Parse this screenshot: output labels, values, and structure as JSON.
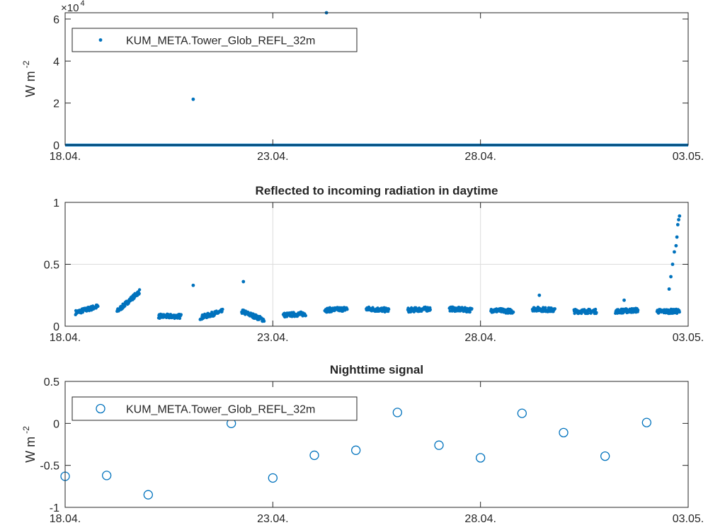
{
  "colors": {
    "series": "#0072BD",
    "axis": "#262626",
    "grid": "#DCDCDC"
  },
  "chart_data": [
    {
      "type": "scatter",
      "title": "",
      "ylabel": "W m",
      "ylabel_sup": "-2",
      "exponent_label": "×10",
      "exponent_sup": "4",
      "xlim": [
        "2018-04-18",
        "2018-05-03"
      ],
      "ylim": [
        0,
        6.3
      ],
      "grid": false,
      "x_ticks": [
        "18.04.",
        "23.04.",
        "28.04.",
        "03.05."
      ],
      "y_ticks": [
        "0",
        "2",
        "4",
        "6"
      ],
      "legend": {
        "position": "top-left",
        "entries": [
          "KUM_META.Tower_Glob_REFL_32m"
        ]
      },
      "series": [
        {
          "name": "KUM_META.Tower_Glob_REFL_32m",
          "baseline": {
            "value": 0,
            "from": "2018-04-18",
            "to": "2018-05-03"
          },
          "points": [
            {
              "x": "2018-04-21 02:00",
              "y": 2.18
            },
            {
              "x": "2018-04-24 07:00",
              "y": 6.3
            }
          ]
        }
      ]
    },
    {
      "type": "scatter",
      "title": "Reflected to incoming radiation in daytime",
      "ylabel": "",
      "xlim": [
        "2018-04-18",
        "2018-05-03"
      ],
      "ylim": [
        0,
        1
      ],
      "grid": true,
      "x_ticks": [
        "18.04.",
        "23.04.",
        "28.04.",
        "03.05."
      ],
      "y_ticks": [
        "0",
        "0.5",
        "1"
      ],
      "series": [
        {
          "name": "",
          "day_clusters": [
            {
              "start": "2018-04-18 06:00",
              "end": "2018-04-18 19:00",
              "y_start": 0.11,
              "y_end": 0.16
            },
            {
              "start": "2018-04-19 06:00",
              "end": "2018-04-19 19:00",
              "y_start": 0.12,
              "y_end": 0.28
            },
            {
              "start": "2018-04-20 06:00",
              "end": "2018-04-20 19:00",
              "y_start": 0.08,
              "y_end": 0.08
            },
            {
              "start": "2018-04-21 06:00",
              "end": "2018-04-21 19:00",
              "y_start": 0.07,
              "y_end": 0.12
            },
            {
              "start": "2018-04-22 06:00",
              "end": "2018-04-22 19:00",
              "y_start": 0.12,
              "y_end": 0.05
            },
            {
              "start": "2018-04-23 06:00",
              "end": "2018-04-23 19:00",
              "y_start": 0.09,
              "y_end": 0.1
            },
            {
              "start": "2018-04-24 06:00",
              "end": "2018-04-24 19:00",
              "y_start": 0.13,
              "y_end": 0.14
            },
            {
              "start": "2018-04-25 06:00",
              "end": "2018-04-25 19:00",
              "y_start": 0.14,
              "y_end": 0.13
            },
            {
              "start": "2018-04-26 06:00",
              "end": "2018-04-26 19:00",
              "y_start": 0.13,
              "y_end": 0.14
            },
            {
              "start": "2018-04-27 06:00",
              "end": "2018-04-27 19:00",
              "y_start": 0.14,
              "y_end": 0.13
            },
            {
              "start": "2018-04-28 06:00",
              "end": "2018-04-28 19:00",
              "y_start": 0.13,
              "y_end": 0.12
            },
            {
              "start": "2018-04-29 06:00",
              "end": "2018-04-29 19:00",
              "y_start": 0.14,
              "y_end": 0.13
            },
            {
              "start": "2018-04-30 06:00",
              "end": "2018-04-30 19:00",
              "y_start": 0.12,
              "y_end": 0.12
            },
            {
              "start": "2018-05-01 06:00",
              "end": "2018-05-01 19:00",
              "y_start": 0.12,
              "y_end": 0.13
            },
            {
              "start": "2018-05-02 06:00",
              "end": "2018-05-02 19:00",
              "y_start": 0.12,
              "y_end": 0.12
            }
          ],
          "outliers": [
            {
              "x": "2018-04-21 02:00",
              "y": 0.33
            },
            {
              "x": "2018-04-22 07:00",
              "y": 0.36
            },
            {
              "x": "2018-04-29 10:00",
              "y": 0.25
            },
            {
              "x": "2018-05-01 11:00",
              "y": 0.21
            },
            {
              "x": "2018-05-02 13:00",
              "y": 0.3
            },
            {
              "x": "2018-05-02 14:00",
              "y": 0.4
            },
            {
              "x": "2018-05-02 15:00",
              "y": 0.5
            },
            {
              "x": "2018-05-02 16:00",
              "y": 0.6
            },
            {
              "x": "2018-05-02 17:00",
              "y": 0.65
            },
            {
              "x": "2018-05-02 17:30",
              "y": 0.72
            },
            {
              "x": "2018-05-02 18:00",
              "y": 0.82
            },
            {
              "x": "2018-05-02 18:30",
              "y": 0.86
            },
            {
              "x": "2018-05-02 19:00",
              "y": 0.89
            }
          ]
        }
      ]
    },
    {
      "type": "scatter",
      "title": "Nighttime signal",
      "ylabel": "W m",
      "ylabel_sup": "-2",
      "xlim": [
        "2018-04-18",
        "2018-05-03"
      ],
      "ylim": [
        -1,
        0.5
      ],
      "grid": false,
      "x_ticks": [
        "18.04.",
        "23.04.",
        "28.04.",
        "03.05."
      ],
      "y_ticks": [
        "-1",
        "-0.5",
        "0",
        "0.5"
      ],
      "legend": {
        "position": "top-left",
        "entries": [
          "KUM_META.Tower_Glob_REFL_32m"
        ]
      },
      "series": [
        {
          "name": "KUM_META.Tower_Glob_REFL_32m",
          "points": [
            {
              "x": "2018-04-18 00:00",
              "y": -0.63
            },
            {
              "x": "2018-04-19 00:00",
              "y": -0.62
            },
            {
              "x": "2018-04-20 00:00",
              "y": -0.85
            },
            {
              "x": "2018-04-22 00:00",
              "y": 0.0
            },
            {
              "x": "2018-04-23 00:00",
              "y": -0.65
            },
            {
              "x": "2018-04-24 00:00",
              "y": -0.38
            },
            {
              "x": "2018-04-25 00:00",
              "y": -0.32
            },
            {
              "x": "2018-04-26 00:00",
              "y": 0.13
            },
            {
              "x": "2018-04-27 00:00",
              "y": -0.26
            },
            {
              "x": "2018-04-28 00:00",
              "y": -0.41
            },
            {
              "x": "2018-04-29 00:00",
              "y": 0.12
            },
            {
              "x": "2018-04-30 00:00",
              "y": -0.11
            },
            {
              "x": "2018-05-01 00:00",
              "y": -0.39
            },
            {
              "x": "2018-05-02 00:00",
              "y": 0.01
            }
          ]
        }
      ]
    }
  ]
}
